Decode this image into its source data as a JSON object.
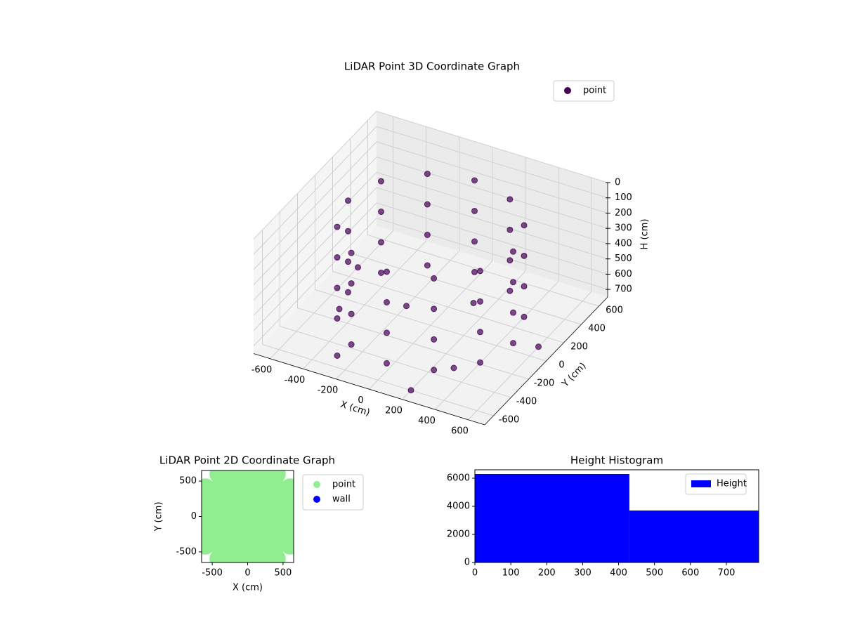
{
  "chart_data": [
    {
      "type": "scatter3d",
      "title": "LiDAR Point 3D Coordinate Graph",
      "xlabel": "X (cm)",
      "ylabel": "Y (cm)",
      "zlabel": "H (cm)",
      "xlim": [
        -700,
        700
      ],
      "ylim": [
        -700,
        700
      ],
      "zlim": [
        0,
        750
      ],
      "z_inverted": true,
      "xticks": [
        -600,
        -400,
        -200,
        0,
        200,
        400,
        600
      ],
      "yticks": [
        -600,
        -400,
        -200,
        0,
        200,
        400,
        600
      ],
      "zticks": [
        0,
        100,
        200,
        300,
        400,
        500,
        600,
        700
      ],
      "legend": "upper right",
      "series": [
        {
          "name": "point",
          "color": "#440154",
          "x": [
            500,
            433,
            250,
            0,
            -250,
            -433,
            -500,
            -433,
            -250,
            0,
            250,
            433,
            500,
            433,
            250,
            0,
            -250,
            -433,
            -500,
            -433,
            -250,
            0,
            250,
            433,
            500,
            433,
            250,
            0,
            -250,
            -433,
            -500,
            -433,
            -250,
            0,
            250,
            433,
            500,
            433,
            250,
            0,
            -250,
            -433,
            -500,
            -433,
            -250,
            0,
            250,
            433,
            -600,
            -300,
            200,
            600,
            -500,
            100,
            -200,
            300
          ],
          "y": [
            0,
            250,
            433,
            500,
            433,
            250,
            0,
            -250,
            -433,
            -500,
            -433,
            -250,
            0,
            250,
            433,
            500,
            433,
            250,
            0,
            -250,
            -433,
            -500,
            -433,
            -250,
            0,
            250,
            433,
            500,
            433,
            250,
            0,
            -250,
            -433,
            -500,
            -433,
            -250,
            0,
            250,
            433,
            500,
            433,
            250,
            0,
            -250,
            -433,
            -500,
            -433,
            -250,
            300,
            -500,
            -600,
            100,
            -100,
            300,
            100,
            -300
          ],
          "z": [
            100,
            100,
            100,
            100,
            100,
            100,
            100,
            100,
            100,
            100,
            100,
            100,
            300,
            300,
            300,
            300,
            300,
            300,
            300,
            300,
            300,
            300,
            300,
            300,
            500,
            500,
            500,
            500,
            500,
            500,
            500,
            500,
            500,
            500,
            500,
            500,
            700,
            700,
            700,
            700,
            700,
            700,
            700,
            700,
            700,
            700,
            700,
            700,
            750,
            750,
            750,
            750,
            750,
            750,
            750,
            750
          ]
        }
      ]
    },
    {
      "type": "scatter",
      "title": "LiDAR Point 2D Coordinate Graph",
      "xlabel": "X (cm)",
      "ylabel": "Y (cm)",
      "xlim": [
        -650,
        650
      ],
      "ylim": [
        -650,
        650
      ],
      "xticks": [
        -500,
        0,
        500
      ],
      "yticks": [
        -500,
        0,
        500
      ],
      "legend": "outside upper right",
      "series": [
        {
          "name": "point",
          "color": "#90ee90",
          "x": [
            -400,
            -200,
            0,
            200,
            400,
            -600,
            -400,
            -200,
            0,
            200,
            400,
            600,
            -600,
            -400,
            -200,
            0,
            200,
            400,
            600,
            -600,
            -400,
            -200,
            0,
            200,
            400,
            600,
            -600,
            -400,
            -200,
            0,
            200,
            400,
            600,
            -600,
            -400,
            -200,
            0,
            200,
            400,
            600,
            -400,
            -200,
            0,
            200,
            400
          ],
          "y": [
            600,
            600,
            600,
            600,
            600,
            400,
            400,
            400,
            400,
            400,
            400,
            400,
            200,
            200,
            200,
            200,
            200,
            200,
            200,
            0,
            0,
            0,
            0,
            0,
            0,
            0,
            -200,
            -200,
            -200,
            -200,
            -200,
            -200,
            -200,
            -400,
            -400,
            -400,
            -400,
            -400,
            -400,
            -400,
            -600,
            -600,
            -600,
            -600,
            -600
          ]
        },
        {
          "name": "wall",
          "color": "#0000ff",
          "x": [],
          "y": []
        }
      ]
    },
    {
      "type": "histogram",
      "title": "Height Histogram",
      "bins": [
        0,
        430,
        790
      ],
      "values": [
        6300,
        3700
      ],
      "color": "#0000ff",
      "name": "Height",
      "xlim": [
        0,
        790
      ],
      "ylim": [
        0,
        6600
      ],
      "xticks": [
        0,
        100,
        200,
        300,
        400,
        500,
        600,
        700
      ],
      "yticks": [
        0,
        2000,
        4000,
        6000
      ],
      "legend": "upper right"
    }
  ]
}
